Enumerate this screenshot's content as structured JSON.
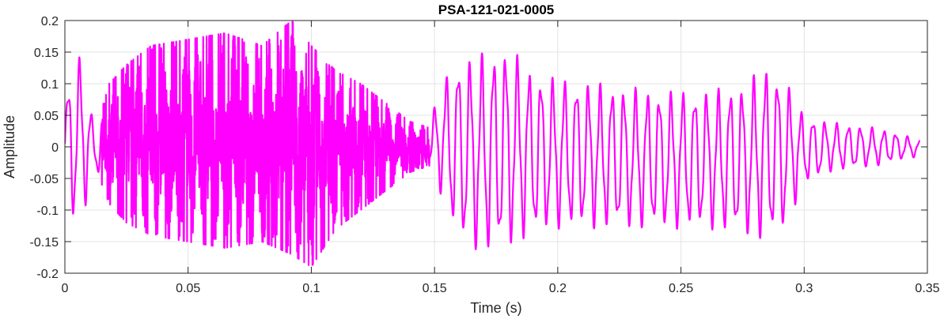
{
  "chart_data": {
    "type": "line",
    "title": "PSA-121-021-0005",
    "xlabel": "Time (s)",
    "ylabel": "Amplitude",
    "xlim": [
      0,
      0.35
    ],
    "ylim": [
      -0.2,
      0.2
    ],
    "x_ticks": [
      0,
      0.05,
      0.1,
      0.15,
      0.2,
      0.25,
      0.3,
      0.35
    ],
    "x_tick_labels": [
      "0",
      "0.05",
      "0.1",
      "0.15",
      "0.2",
      "0.25",
      "0.3",
      "0.35"
    ],
    "y_ticks": [
      -0.2,
      -0.15,
      -0.1,
      -0.05,
      0,
      0.05,
      0.1,
      0.15,
      0.2
    ],
    "y_tick_labels": [
      "-0.2",
      "-0.15",
      "-0.1",
      "-0.05",
      "0",
      "0.05",
      "0.1",
      "0.15",
      "0.2"
    ],
    "grid": true,
    "series": [
      {
        "color": "#ff00ff",
        "envelope": {
          "x": [
            0,
            0.003,
            0.008,
            0.012,
            0.018,
            0.025,
            0.035,
            0.05,
            0.065,
            0.08,
            0.092,
            0.1,
            0.11,
            0.12,
            0.13,
            0.14,
            0.148,
            0.152,
            0.16,
            0.17,
            0.18,
            0.19,
            0.2,
            0.22,
            0.24,
            0.26,
            0.275,
            0.285,
            0.292,
            0.3,
            0.31,
            0.32,
            0.33,
            0.34,
            0.347
          ],
          "max": [
            0.06,
            0.15,
            0.14,
            0.02,
            0.1,
            0.13,
            0.16,
            0.17,
            0.18,
            0.16,
            0.2,
            0.16,
            0.12,
            0.1,
            0.07,
            0.04,
            0.03,
            0.1,
            0.14,
            0.15,
            0.16,
            0.12,
            0.11,
            0.1,
            0.09,
            0.09,
            0.1,
            0.13,
            0.11,
            0.05,
            0.04,
            0.035,
            0.03,
            0.02,
            0.01
          ],
          "min": [
            -0.05,
            -0.12,
            -0.1,
            -0.03,
            -0.09,
            -0.12,
            -0.14,
            -0.15,
            -0.16,
            -0.15,
            -0.17,
            -0.19,
            -0.13,
            -0.1,
            -0.07,
            -0.04,
            -0.03,
            -0.07,
            -0.15,
            -0.17,
            -0.16,
            -0.14,
            -0.13,
            -0.13,
            -0.13,
            -0.13,
            -0.14,
            -0.15,
            -0.13,
            -0.06,
            -0.04,
            -0.035,
            -0.03,
            -0.02,
            -0.015
          ]
        },
        "oscillation_period_s": 0.0048
      }
    ]
  }
}
